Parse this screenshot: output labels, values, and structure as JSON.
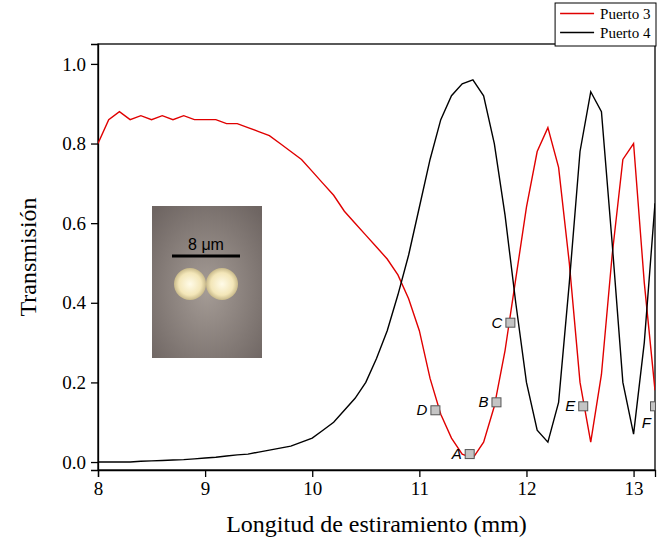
{
  "chart_data": {
    "type": "line",
    "x_label": "Longitud de estiramiento (mm)",
    "y_label": "Transmisión",
    "xlim": [
      8,
      13.2
    ],
    "ylim": [
      -0.02,
      1.05
    ],
    "xticks": [
      8,
      9,
      10,
      11,
      12,
      13
    ],
    "yticks": [
      {
        "value": 0,
        "label": "0.0"
      },
      0.2,
      0.4,
      0.6,
      0.8,
      {
        "value": 1,
        "label": "1.0"
      }
    ],
    "grid": false,
    "legend": "top-right",
    "x": [
      8.0,
      8.1,
      8.2,
      8.3,
      8.4,
      8.5,
      8.6,
      8.7,
      8.8,
      8.9,
      9.0,
      9.1,
      9.2,
      9.3,
      9.4,
      9.5,
      9.6,
      9.7,
      9.8,
      9.9,
      10.0,
      10.1,
      10.2,
      10.3,
      10.4,
      10.5,
      10.6,
      10.7,
      10.8,
      10.9,
      11.0,
      11.1,
      11.2,
      11.3,
      11.4,
      11.5,
      11.6,
      11.7,
      11.8,
      11.9,
      12.0,
      12.1,
      12.2,
      12.3,
      12.4,
      12.5,
      12.6,
      12.7,
      12.8,
      12.9,
      13.0,
      13.1,
      13.2
    ],
    "series": [
      {
        "name": "Puerto 3",
        "color": "#e00000",
        "values": [
          0.8,
          0.86,
          0.88,
          0.86,
          0.87,
          0.86,
          0.87,
          0.86,
          0.87,
          0.86,
          0.86,
          0.86,
          0.85,
          0.85,
          0.84,
          0.83,
          0.82,
          0.8,
          0.78,
          0.76,
          0.73,
          0.7,
          0.67,
          0.63,
          0.6,
          0.57,
          0.54,
          0.51,
          0.47,
          0.41,
          0.33,
          0.21,
          0.12,
          0.06,
          0.02,
          0.01,
          0.05,
          0.14,
          0.28,
          0.46,
          0.64,
          0.78,
          0.84,
          0.74,
          0.5,
          0.2,
          0.05,
          0.22,
          0.52,
          0.76,
          0.8,
          0.45,
          0.18
        ]
      },
      {
        "name": "Puerto 4",
        "color": "#000000",
        "values": [
          0.0,
          0.0,
          0.0,
          0.0,
          0.002,
          0.003,
          0.004,
          0.005,
          0.006,
          0.008,
          0.01,
          0.012,
          0.015,
          0.018,
          0.02,
          0.025,
          0.03,
          0.035,
          0.04,
          0.05,
          0.06,
          0.08,
          0.1,
          0.13,
          0.16,
          0.2,
          0.26,
          0.33,
          0.42,
          0.52,
          0.64,
          0.76,
          0.86,
          0.92,
          0.95,
          0.96,
          0.92,
          0.8,
          0.62,
          0.4,
          0.2,
          0.08,
          0.05,
          0.15,
          0.45,
          0.78,
          0.93,
          0.88,
          0.55,
          0.2,
          0.07,
          0.3,
          0.65
        ]
      }
    ],
    "annotations": [
      {
        "label": "A",
        "x": 11.47,
        "y": 0.02
      },
      {
        "label": "B",
        "x": 11.72,
        "y": 0.15
      },
      {
        "label": "C",
        "x": 11.85,
        "y": 0.35
      },
      {
        "label": "D",
        "x": 11.15,
        "y": 0.13
      },
      {
        "label": "E",
        "x": 12.53,
        "y": 0.14
      },
      {
        "label": "F",
        "x": 13.2,
        "y": 0.14
      }
    ],
    "inset": {
      "scale_bar": "8 μm"
    }
  }
}
